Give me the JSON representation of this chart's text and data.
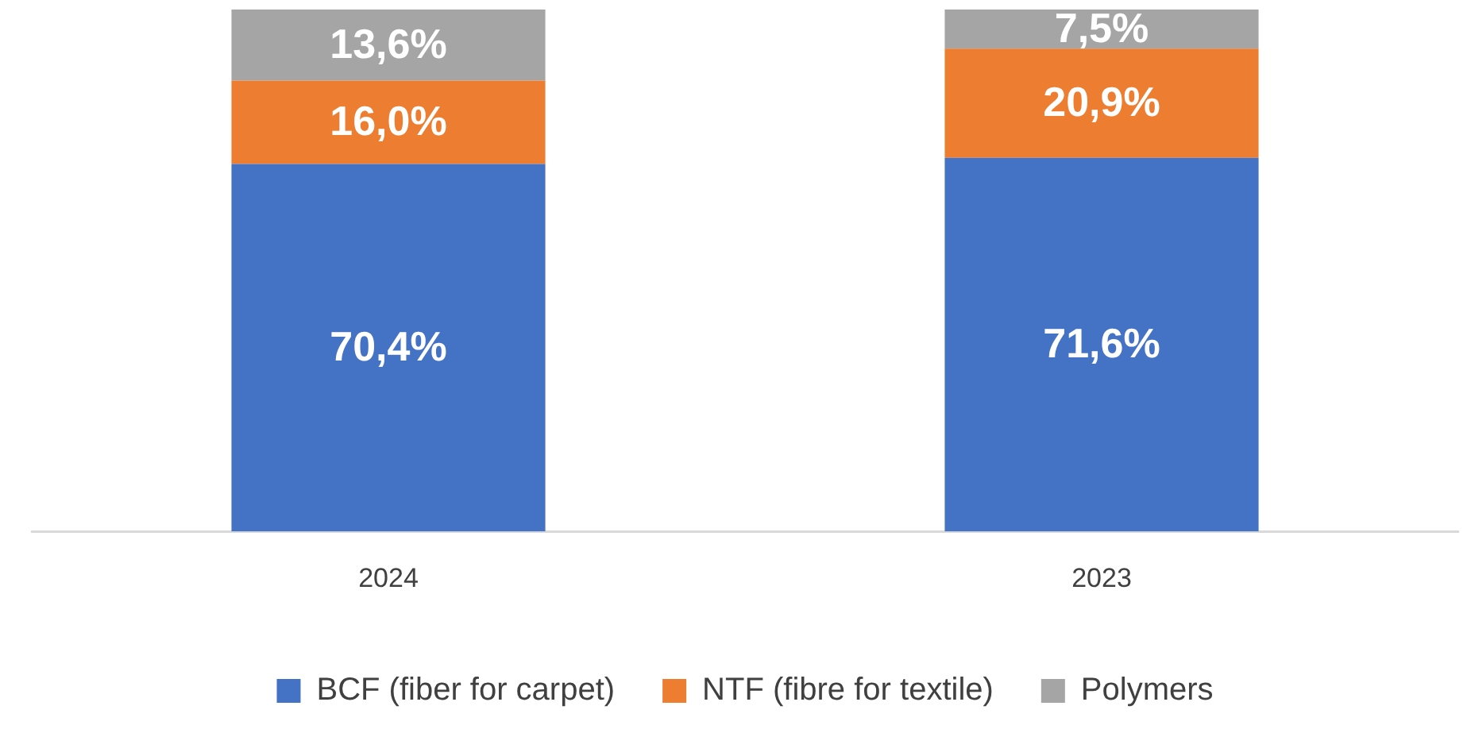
{
  "chart_data": {
    "type": "bar",
    "stacked": true,
    "categories": [
      "2024",
      "2023"
    ],
    "ylim": [
      0,
      100
    ],
    "legend": "bottom",
    "series": [
      {
        "name": "BCF (fiber for carpet)",
        "color": "#4472c4",
        "values": [
          70.4,
          71.6
        ],
        "value_labels": [
          "70,4%",
          "71,6%"
        ]
      },
      {
        "name": "NTF (fibre for textile)",
        "color": "#ed7d31",
        "values": [
          16.0,
          20.9
        ],
        "value_labels": [
          "16,0%",
          "20,9%"
        ]
      },
      {
        "name": "Polymers",
        "color": "#a5a5a5",
        "values": [
          13.6,
          7.5
        ],
        "value_labels": [
          "13,6%",
          "7,5%"
        ]
      }
    ]
  }
}
